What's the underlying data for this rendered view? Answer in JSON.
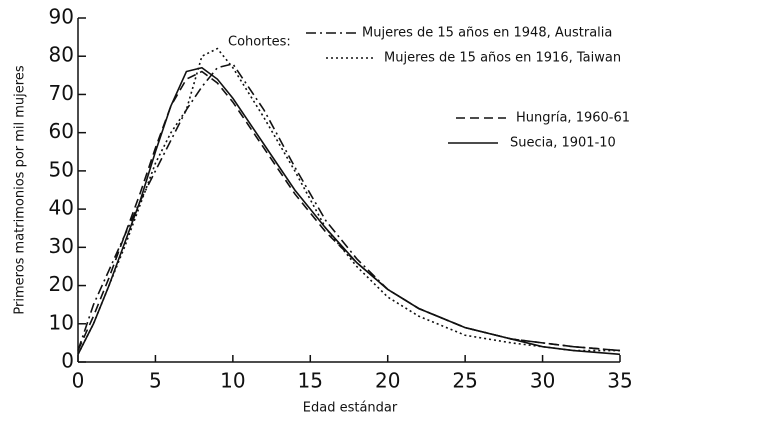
{
  "chart_data": {
    "type": "line",
    "x_label": "Edad estándar",
    "y_label": "Primeros matrimonios por mil mujeres",
    "legend_title": "Cohortes:",
    "x": [
      0,
      1,
      2,
      3,
      4,
      5,
      6,
      7,
      8,
      9,
      10,
      12,
      14,
      16,
      18,
      20,
      22,
      25,
      28,
      30,
      32,
      35
    ],
    "series": [
      {
        "name": "Mujeres de 15 años en 1948, Australia",
        "color": "#111111",
        "linestyle": "dashdot",
        "values": [
          3,
          15,
          24,
          33,
          42,
          50,
          58,
          66,
          72,
          77,
          78,
          66,
          51,
          37,
          27,
          19,
          14,
          9,
          6,
          5,
          4,
          3
        ]
      },
      {
        "name": "Mujeres de 15 años en 1916, Taiwan",
        "color": "#111111",
        "linestyle": "dotted",
        "values": [
          2,
          10,
          20,
          30,
          41,
          52,
          60,
          66,
          80,
          82,
          77,
          64,
          50,
          35,
          25,
          17,
          12,
          7,
          5,
          4,
          3,
          3
        ]
      },
      {
        "name": "Hungría, 1960-61",
        "color": "#111111",
        "linestyle": "dashed",
        "values": [
          3,
          12,
          22,
          33,
          44,
          56,
          67,
          74,
          76,
          73,
          68,
          56,
          44,
          34,
          26,
          19,
          14,
          9,
          6,
          5,
          4,
          3
        ]
      },
      {
        "name": "Suecia, 1901-10",
        "color": "#111111",
        "linestyle": "solid",
        "values": [
          2,
          10,
          20,
          31,
          42,
          55,
          67,
          76,
          77,
          74,
          69,
          57,
          45,
          35,
          26,
          19,
          14,
          9,
          6,
          4,
          3,
          2
        ]
      }
    ],
    "xlim": [
      0,
      35
    ],
    "xticks": [
      0,
      5,
      10,
      15,
      20,
      25,
      30,
      35
    ],
    "ylim": [
      0,
      90
    ],
    "yticks": [
      0,
      10,
      20,
      30,
      40,
      50,
      60,
      70,
      80,
      90
    ]
  }
}
